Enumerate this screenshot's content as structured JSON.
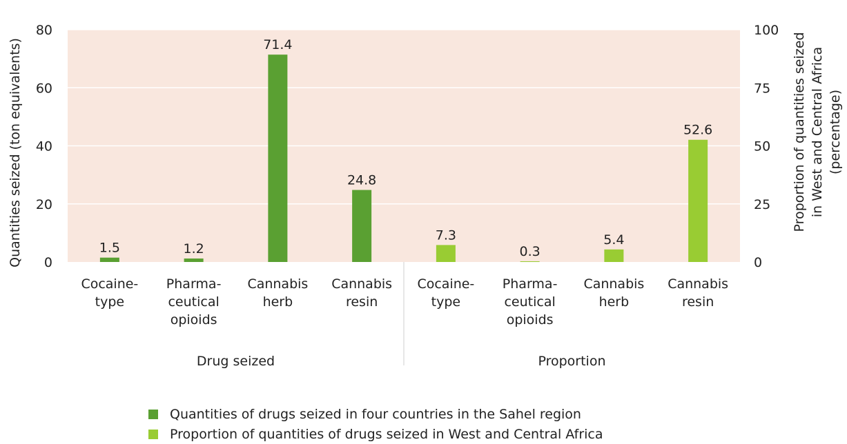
{
  "chart_data": {
    "type": "bar",
    "background_color": "#f9e7de",
    "grid": true,
    "groups": [
      {
        "label": "Drug seized",
        "categories": [
          "Cocaine-\ntype",
          "Pharma-\nceutical\nopioids",
          "Cannabis\nherb",
          "Cannabis\nresin"
        ],
        "series": "quantities",
        "values": [
          1.5,
          1.2,
          71.4,
          24.8
        ],
        "data_labels": [
          "1.5",
          "1.2",
          "71.4",
          "24.8"
        ],
        "axis": "left"
      },
      {
        "label": "Proportion",
        "categories": [
          "Cocaine-\ntype",
          "Pharma-\nceutical\nopioids",
          "Cannabis\nherb",
          "Cannabis\nresin"
        ],
        "series": "proportion",
        "values": [
          7.3,
          0.3,
          5.4,
          52.6
        ],
        "data_labels": [
          "7.3",
          "0.3",
          "5.4",
          "52.6"
        ],
        "axis": "right"
      }
    ],
    "series": [
      {
        "id": "quantities",
        "name": "Quantities of drugs seized in four countries in the Sahel region",
        "color": "#5aa032"
      },
      {
        "id": "proportion",
        "name": "Proportion of quantities of drugs seized in West and Central Africa",
        "color": "#99cc33"
      }
    ],
    "y_left": {
      "label": "Quantities seized (ton equivalents)",
      "ylim": [
        0,
        80
      ],
      "ticks": [
        "0",
        "20",
        "40",
        "60",
        "80"
      ]
    },
    "y_right": {
      "label": [
        "Proportion of quantities seized",
        "in West and Central Africa",
        "(percentage)"
      ],
      "ylim": [
        0,
        100
      ],
      "ticks": [
        "0",
        "25",
        "50",
        "75",
        "100"
      ]
    },
    "legend_position": "bottom"
  }
}
